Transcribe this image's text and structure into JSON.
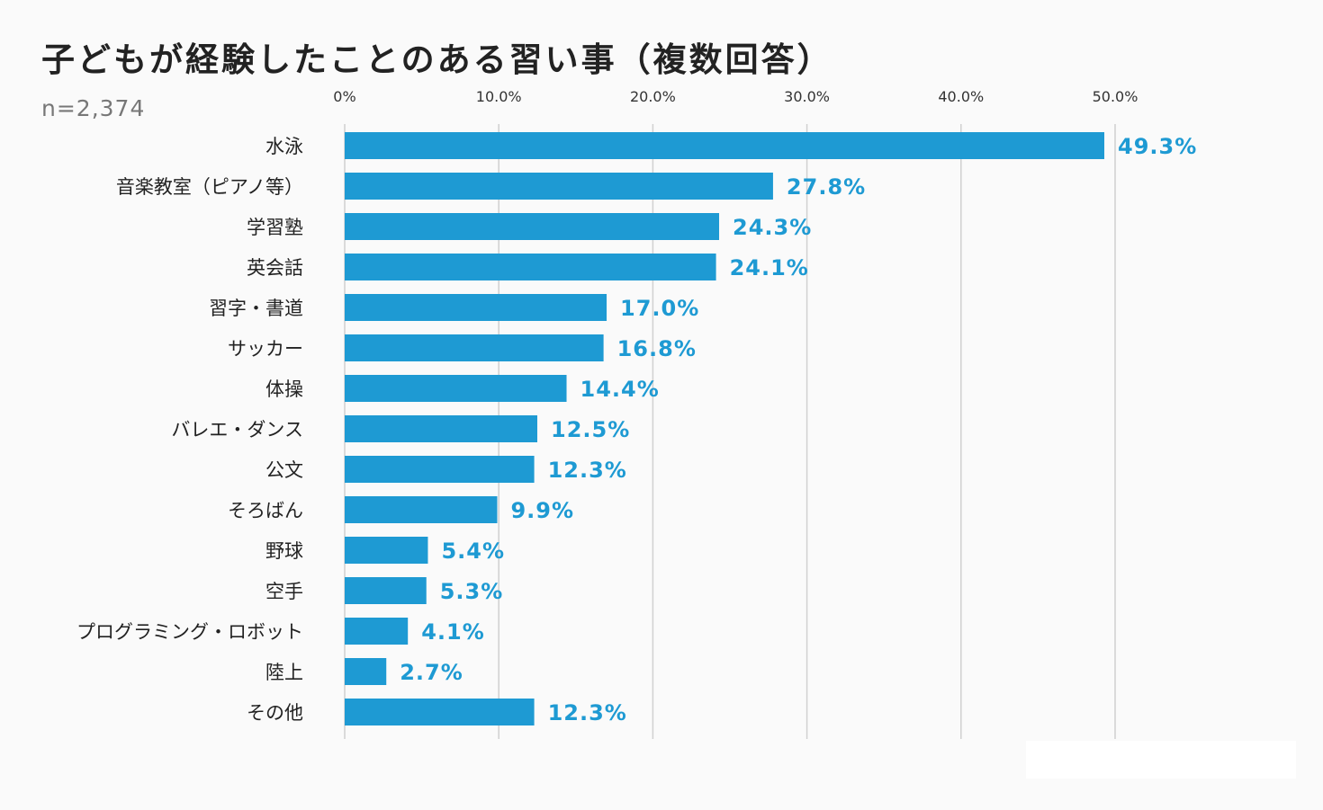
{
  "page": {
    "title": "子どもが経験したことのある習い事（複数回答）",
    "sample_size": "n=2,374"
  },
  "colors": {
    "bar": "#1e9ad3",
    "value_label": "#1e9ad3",
    "grid": "#d0d0d0"
  },
  "chart_data": {
    "type": "bar",
    "orientation": "horizontal",
    "title": "子どもが経験したことのある習い事（複数回答）",
    "categories": [
      "水泳",
      "音楽教室（ピアノ等）",
      "学習塾",
      "英会話",
      "習字・書道",
      "サッカー",
      "体操",
      "バレエ・ダンス",
      "公文",
      "そろばん",
      "野球",
      "空手",
      "プログラミング・ロボット",
      "陸上",
      "その他"
    ],
    "values": [
      49.3,
      27.8,
      24.3,
      24.1,
      17.0,
      16.8,
      14.4,
      12.5,
      12.3,
      9.9,
      5.4,
      5.3,
      4.1,
      2.7,
      12.3
    ],
    "value_labels": [
      "49.3%",
      "27.8%",
      "24.3%",
      "24.1%",
      "17.0%",
      "16.8%",
      "14.4%",
      "12.5%",
      "12.3%",
      "9.9%",
      "5.4%",
      "5.3%",
      "4.1%",
      "2.7%",
      "12.3%"
    ],
    "xticks": [
      0,
      10,
      20,
      30,
      40,
      50
    ],
    "xtick_labels": [
      "0%",
      "10.0%",
      "20.0%",
      "30.0%",
      "40.0%",
      "50.0%"
    ],
    "xlim": [
      0,
      50
    ],
    "tick_position": "top",
    "grid": true,
    "legend": "none"
  }
}
